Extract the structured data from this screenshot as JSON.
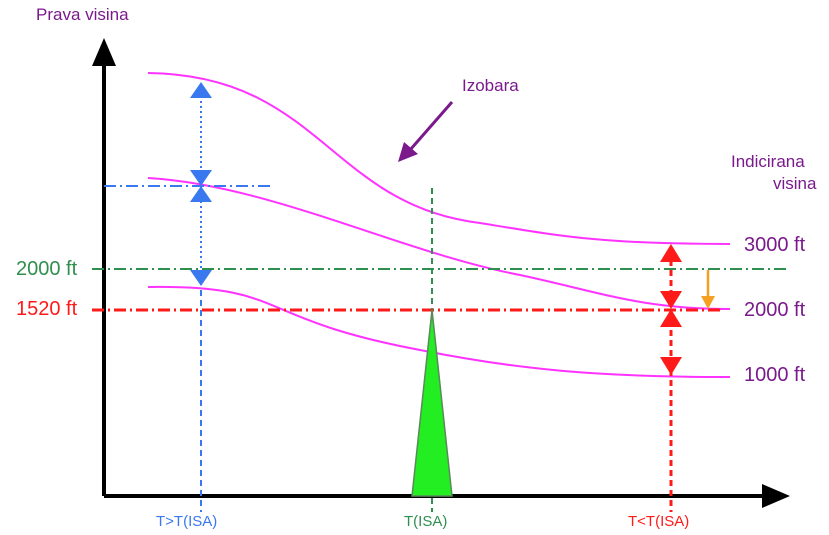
{
  "axis": {
    "y_label": "Prava visina"
  },
  "annotation": {
    "isobar_label": "Izobara"
  },
  "indicated": {
    "line1": "Indicirana",
    "line2": "visina"
  },
  "isobars": [
    "3000 ft",
    "2000 ft",
    "1000 ft"
  ],
  "reference_levels": {
    "green": "2000 ft",
    "red": "1520 ft"
  },
  "x_categories": [
    "T>T(ISA)",
    "T(ISA)",
    "T<T(ISA)"
  ],
  "colors": {
    "isobar": "#ff33ff",
    "text_purple": "#7a1a8c",
    "warm_blue": "#3a78f0",
    "isa_green": "#2f8f4f",
    "triangle_green": "#22ee22",
    "cold_red": "#ff1a1a",
    "arrow_orange": "#f5a020"
  }
}
